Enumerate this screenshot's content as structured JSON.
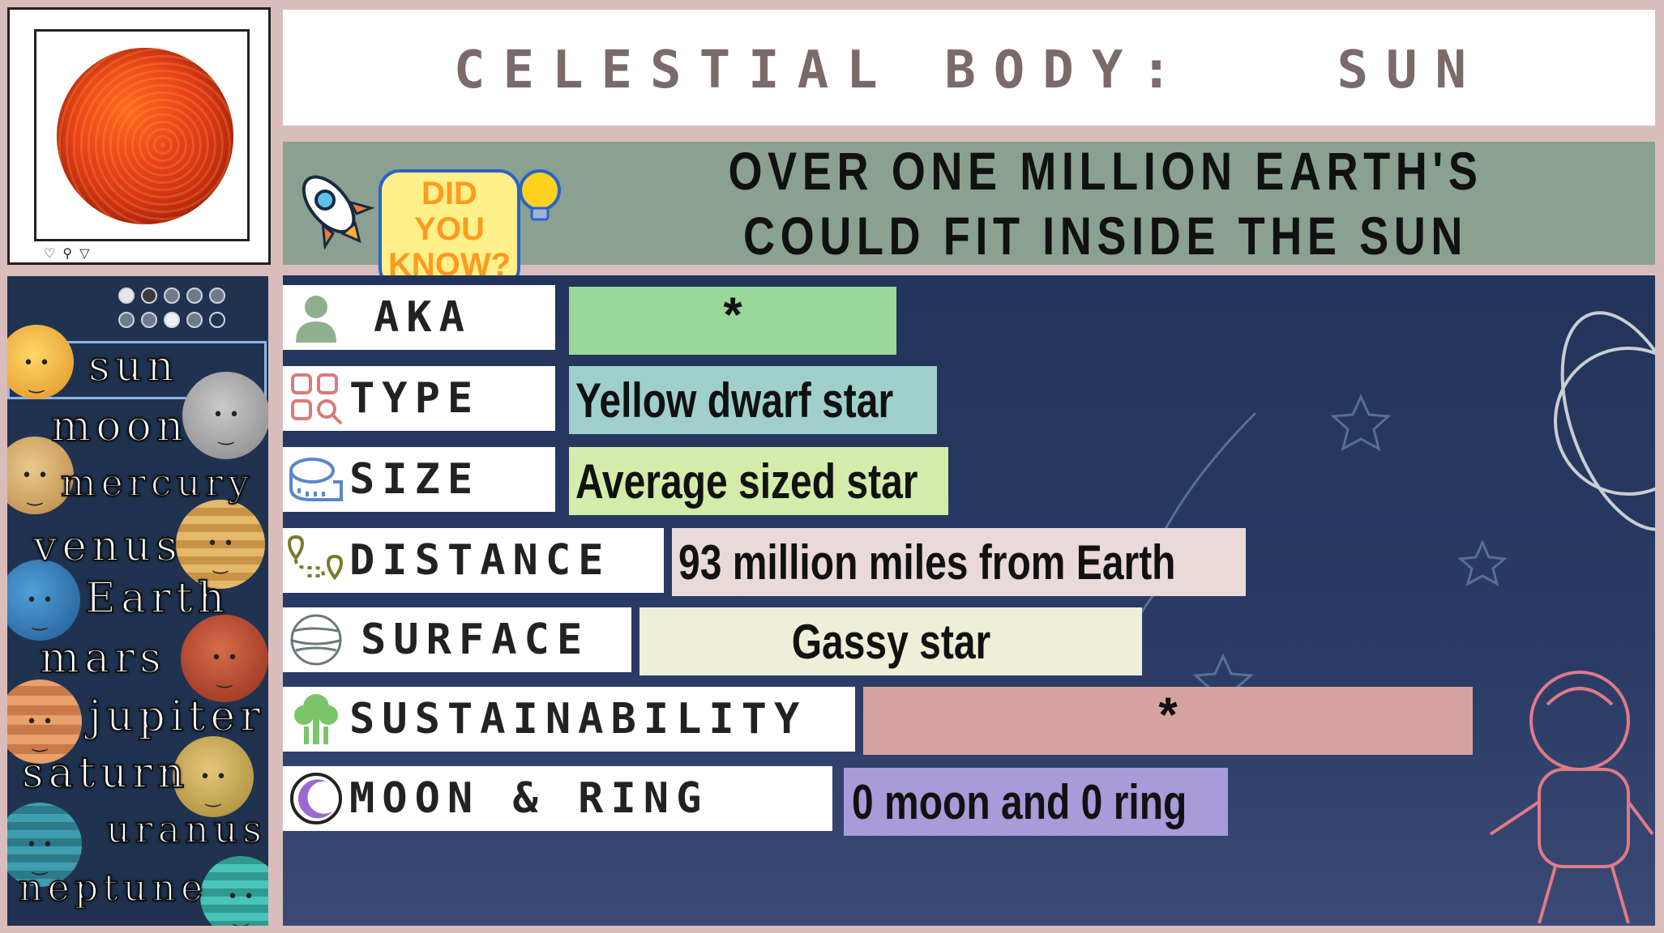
{
  "title": {
    "label": "CELESTIAL BODY:",
    "value": "SUN"
  },
  "fact": {
    "badge_line1": "DID YOU",
    "badge_line2": "KNOW?",
    "text": "OVER ONE MILLION EARTH'S COULD FIT INSIDE THE SUN"
  },
  "photo": {
    "icons": [
      "heart-icon",
      "comment-icon",
      "share-icon"
    ]
  },
  "sidebar": {
    "items": [
      {
        "label": "sun"
      },
      {
        "label": "moon"
      },
      {
        "label": "mercury"
      },
      {
        "label": "venus"
      },
      {
        "label": "Earth"
      },
      {
        "label": "mars"
      },
      {
        "label": "jupiter"
      },
      {
        "label": "saturn"
      },
      {
        "label": "uranus"
      },
      {
        "label": "neptune"
      }
    ]
  },
  "properties": [
    {
      "label": "AKA",
      "value": "*",
      "icon": "person-icon",
      "color": "#9ad89a"
    },
    {
      "label": "TYPE",
      "value": "Yellow dwarf star",
      "icon": "category-search-icon",
      "color": "#9fcfcb"
    },
    {
      "label": "SIZE",
      "value": "Average sized star",
      "icon": "tape-measure-icon",
      "color": "#d3ecaa"
    },
    {
      "label": "DISTANCE",
      "value": "93 million miles from Earth",
      "icon": "route-pin-icon",
      "color": "#ead9d9"
    },
    {
      "label": "SURFACE",
      "value": "Gassy star",
      "icon": "gas-planet-icon",
      "color": "#efeed8"
    },
    {
      "label": "SUSTAINABILITY",
      "value": "*",
      "icon": "tree-icon",
      "color": "#d5a1a1"
    },
    {
      "label": "MOON & RING",
      "value": "0 moon and 0 ring",
      "icon": "crescent-moon-icon",
      "color": "#a99ad9"
    }
  ],
  "colors": {
    "background": "#d9bdbd",
    "main_panel": "#22345a",
    "fact_bar": "#8aa191",
    "title_text": "#7a6a6a"
  }
}
